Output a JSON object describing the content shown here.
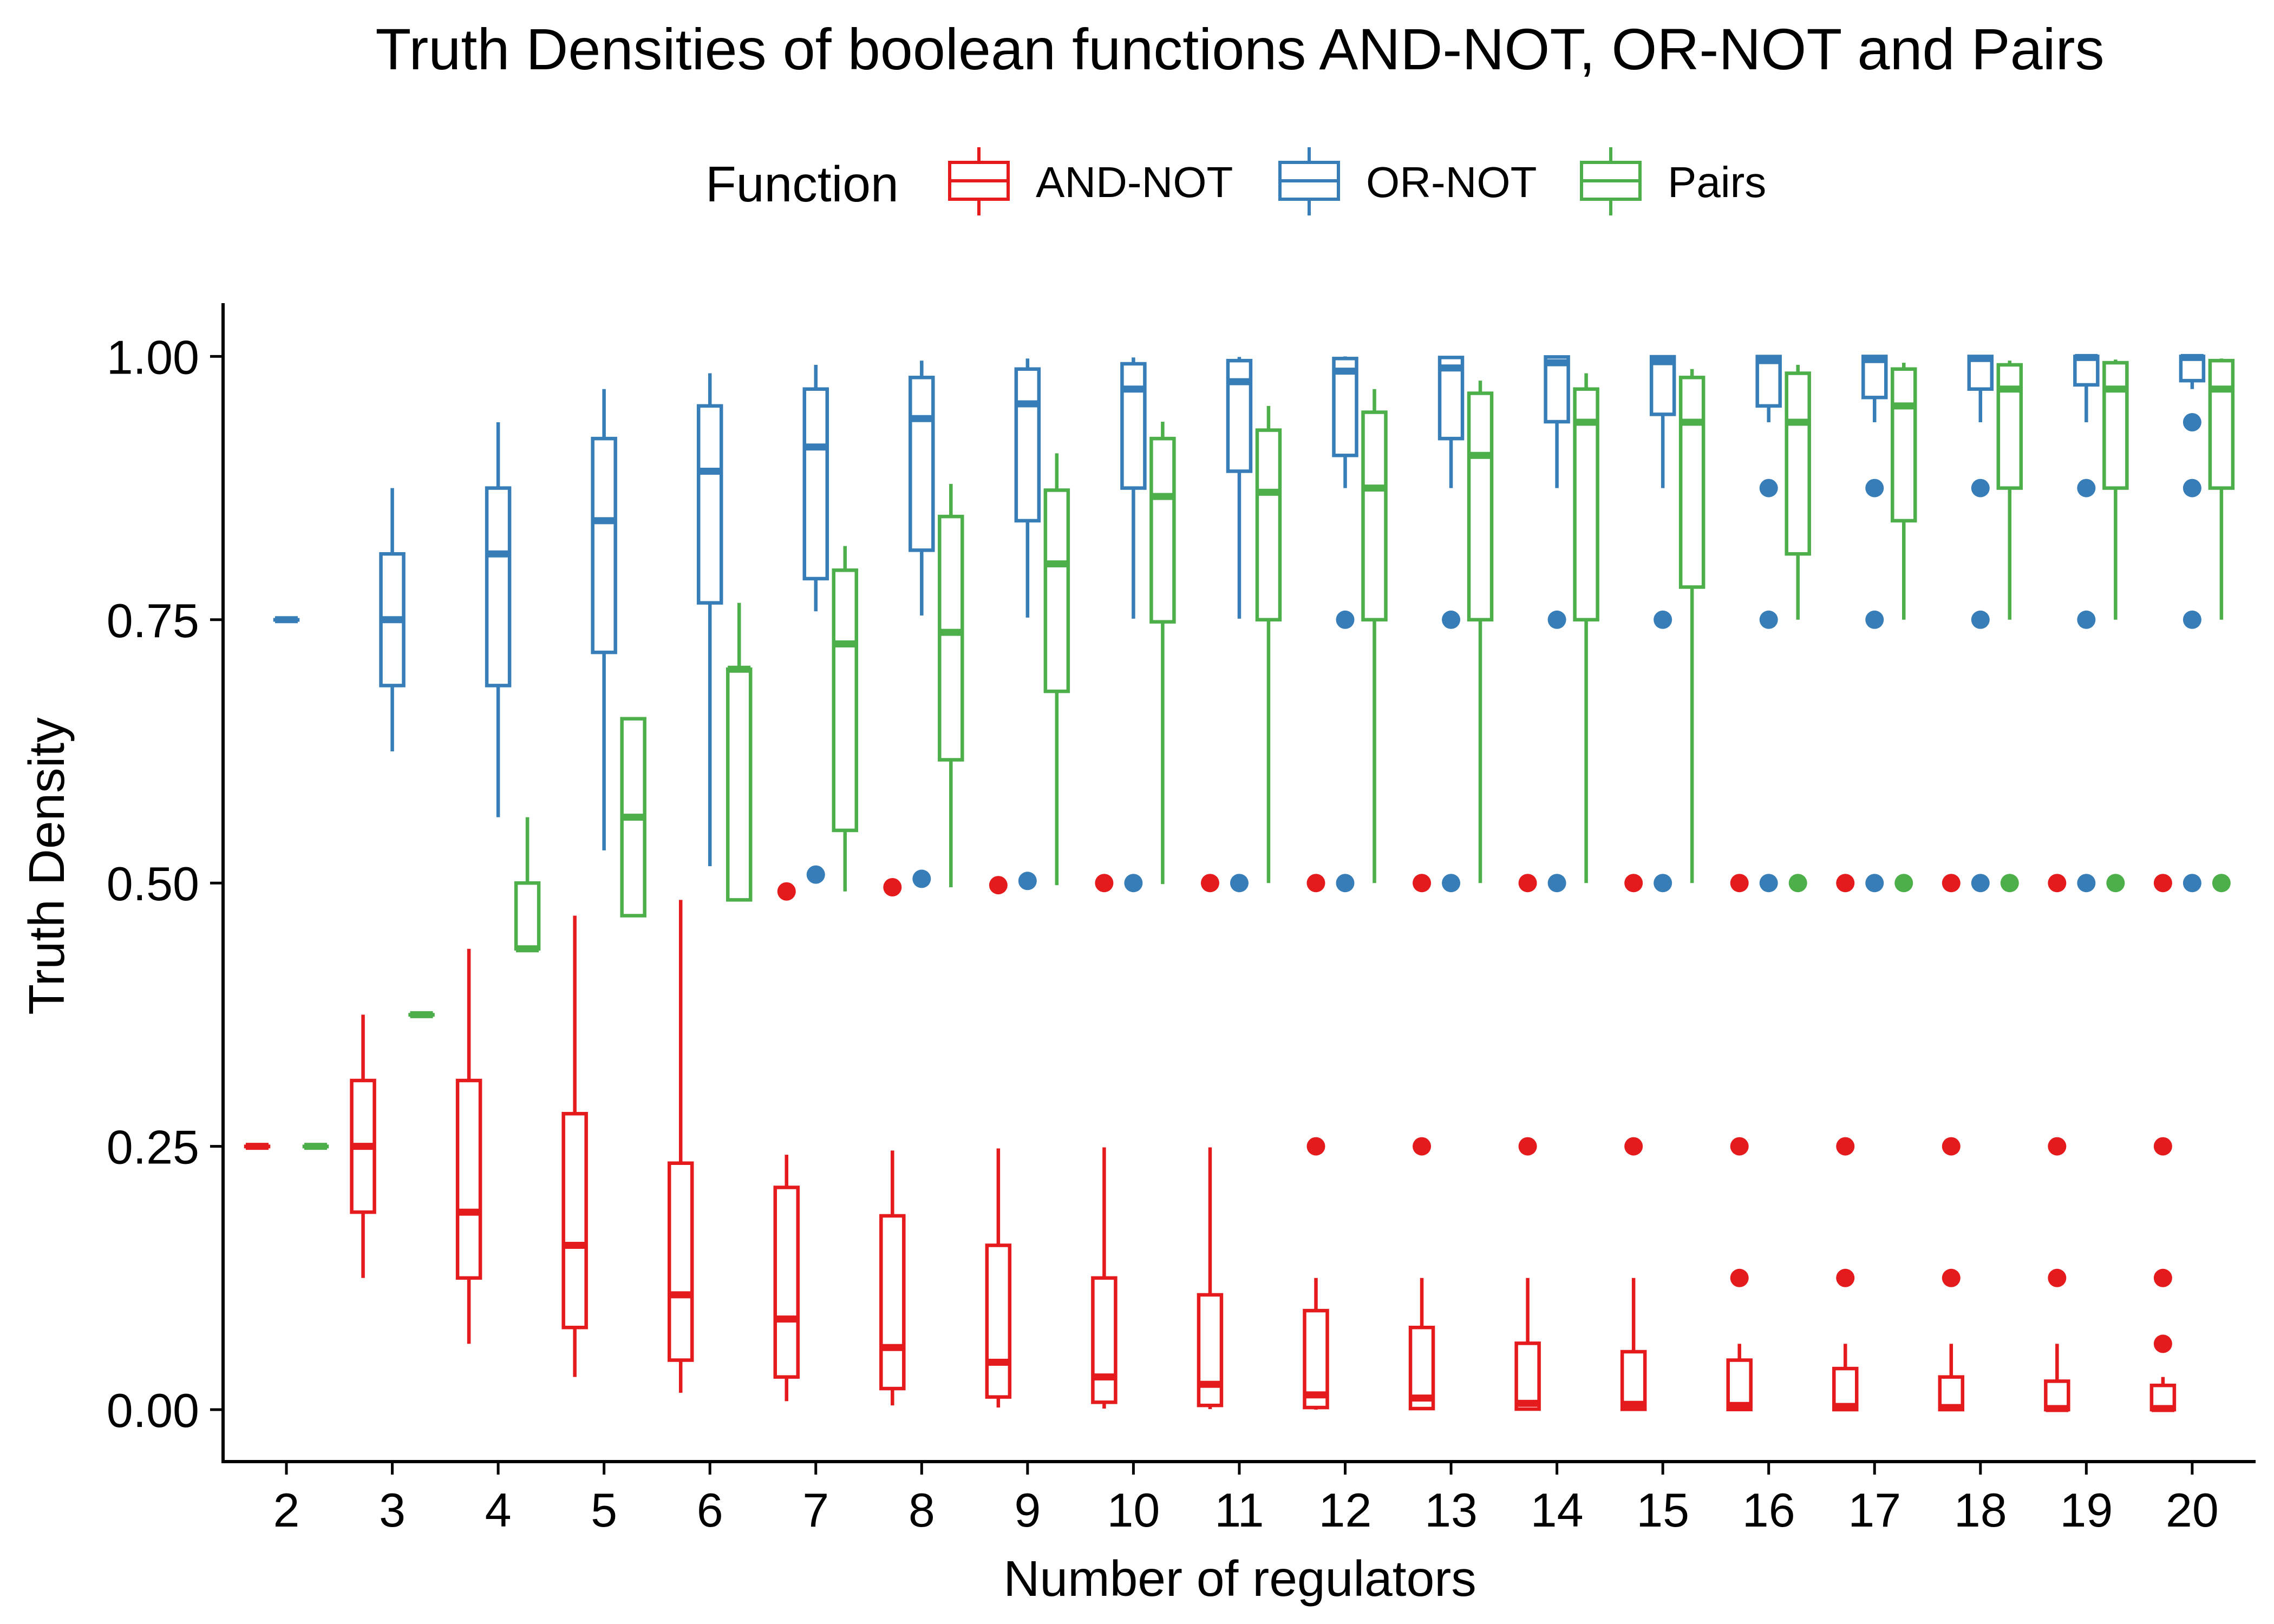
{
  "chart_data": {
    "type": "box",
    "title": "Truth Densities of boolean functions AND-NOT, OR-NOT and Pairs",
    "xlabel": "Number of regulators",
    "ylabel": "Truth Density",
    "legend": {
      "title": "Function",
      "placement": "top",
      "entries": [
        "AND-NOT",
        "OR-NOT",
        "Pairs"
      ]
    },
    "colors": {
      "AND-NOT": "#E41A1C",
      "OR-NOT": "#377EB8",
      "Pairs": "#4DAF4A"
    },
    "categories": [
      2,
      3,
      4,
      5,
      6,
      7,
      8,
      9,
      10,
      11,
      12,
      13,
      14,
      15,
      16,
      17,
      18,
      19,
      20
    ],
    "ylim": [
      -0.05,
      1.05
    ],
    "yticks": [
      0,
      0.25,
      0.5,
      0.75,
      1
    ],
    "ytick_labels": [
      "0.00",
      "0.25",
      "0.50",
      "0.75",
      "1.00"
    ],
    "series": [
      {
        "name": "AND-NOT",
        "boxes": [
          {
            "x": 2,
            "min": 0.25,
            "q1": 0.25,
            "median": 0.25,
            "q3": 0.25,
            "max": 0.25,
            "outliers": []
          },
          {
            "x": 3,
            "min": 0.125,
            "q1": 0.1875,
            "median": 0.25,
            "q3": 0.3125,
            "max": 0.375,
            "outliers": []
          },
          {
            "x": 4,
            "min": 0.0625,
            "q1": 0.125,
            "median": 0.1875,
            "q3": 0.3125,
            "max": 0.4375,
            "outliers": []
          },
          {
            "x": 5,
            "min": 0.031,
            "q1": 0.078,
            "median": 0.156,
            "q3": 0.281,
            "max": 0.469,
            "outliers": []
          },
          {
            "x": 6,
            "min": 0.016,
            "q1": 0.047,
            "median": 0.109,
            "q3": 0.234,
            "max": 0.484,
            "outliers": []
          },
          {
            "x": 7,
            "min": 0.008,
            "q1": 0.031,
            "median": 0.086,
            "q3": 0.211,
            "max": 0.242,
            "outliers": [
              0.492
            ]
          },
          {
            "x": 8,
            "min": 0.004,
            "q1": 0.02,
            "median": 0.059,
            "q3": 0.184,
            "max": 0.246,
            "outliers": [
              0.496
            ]
          },
          {
            "x": 9,
            "min": 0.002,
            "q1": 0.012,
            "median": 0.045,
            "q3": 0.156,
            "max": 0.248,
            "outliers": [
              0.498
            ]
          },
          {
            "x": 10,
            "min": 0.001,
            "q1": 0.007,
            "median": 0.031,
            "q3": 0.125,
            "max": 0.249,
            "outliers": [
              0.5
            ]
          },
          {
            "x": 11,
            "min": 0.0005,
            "q1": 0.004,
            "median": 0.024,
            "q3": 0.109,
            "max": 0.249,
            "outliers": [
              0.5
            ]
          },
          {
            "x": 12,
            "min": 0.0,
            "q1": 0.002,
            "median": 0.014,
            "q3": 0.094,
            "max": 0.125,
            "outliers": [
              0.25,
              0.5
            ]
          },
          {
            "x": 13,
            "min": 0.0,
            "q1": 0.001,
            "median": 0.011,
            "q3": 0.078,
            "max": 0.125,
            "outliers": [
              0.25,
              0.5
            ]
          },
          {
            "x": 14,
            "min": 0.0,
            "q1": 0.0005,
            "median": 0.006,
            "q3": 0.063,
            "max": 0.125,
            "outliers": [
              0.25,
              0.5
            ]
          },
          {
            "x": 15,
            "min": 0.0,
            "q1": 0.0003,
            "median": 0.005,
            "q3": 0.055,
            "max": 0.125,
            "outliers": [
              0.25,
              0.5
            ]
          },
          {
            "x": 16,
            "min": 0.0,
            "q1": 0.0001,
            "median": 0.004,
            "q3": 0.047,
            "max": 0.0625,
            "outliers": [
              0.125,
              0.25,
              0.5
            ]
          },
          {
            "x": 17,
            "min": 0.0,
            "q1": 0.0,
            "median": 0.003,
            "q3": 0.039,
            "max": 0.0625,
            "outliers": [
              0.125,
              0.25,
              0.5
            ]
          },
          {
            "x": 18,
            "min": 0.0,
            "q1": 0.0,
            "median": 0.002,
            "q3": 0.031,
            "max": 0.0625,
            "outliers": [
              0.125,
              0.25,
              0.5
            ]
          },
          {
            "x": 19,
            "min": 0.0,
            "q1": 0.0,
            "median": 0.001,
            "q3": 0.027,
            "max": 0.0625,
            "outliers": [
              0.125,
              0.25,
              0.5
            ]
          },
          {
            "x": 20,
            "min": 0.0,
            "q1": 0.0,
            "median": 0.001,
            "q3": 0.023,
            "max": 0.031,
            "outliers": [
              0.0625,
              0.125,
              0.25,
              0.5
            ]
          }
        ]
      },
      {
        "name": "OR-NOT",
        "boxes": [
          {
            "x": 2,
            "min": 0.75,
            "q1": 0.75,
            "median": 0.75,
            "q3": 0.75,
            "max": 0.75,
            "outliers": []
          },
          {
            "x": 3,
            "min": 0.625,
            "q1": 0.6875,
            "median": 0.75,
            "q3": 0.8125,
            "max": 0.875,
            "outliers": []
          },
          {
            "x": 4,
            "min": 0.5625,
            "q1": 0.6875,
            "median": 0.8125,
            "q3": 0.875,
            "max": 0.9375,
            "outliers": []
          },
          {
            "x": 5,
            "min": 0.531,
            "q1": 0.719,
            "median": 0.844,
            "q3": 0.922,
            "max": 0.969,
            "outliers": []
          },
          {
            "x": 6,
            "min": 0.516,
            "q1": 0.766,
            "median": 0.891,
            "q3": 0.953,
            "max": 0.984,
            "outliers": []
          },
          {
            "x": 7,
            "min": 0.758,
            "q1": 0.789,
            "median": 0.914,
            "q3": 0.969,
            "max": 0.992,
            "outliers": [
              0.508
            ]
          },
          {
            "x": 8,
            "min": 0.754,
            "q1": 0.816,
            "median": 0.941,
            "q3": 0.98,
            "max": 0.996,
            "outliers": [
              0.504
            ]
          },
          {
            "x": 9,
            "min": 0.752,
            "q1": 0.844,
            "median": 0.955,
            "q3": 0.988,
            "max": 0.998,
            "outliers": [
              0.502
            ]
          },
          {
            "x": 10,
            "min": 0.751,
            "q1": 0.875,
            "median": 0.969,
            "q3": 0.993,
            "max": 0.999,
            "outliers": [
              0.5
            ]
          },
          {
            "x": 11,
            "min": 0.751,
            "q1": 0.891,
            "median": 0.976,
            "q3": 0.996,
            "max": 0.9995,
            "outliers": [
              0.5
            ]
          },
          {
            "x": 12,
            "min": 0.875,
            "q1": 0.906,
            "median": 0.986,
            "q3": 0.998,
            "max": 1.0,
            "outliers": [
              0.75,
              0.5
            ]
          },
          {
            "x": 13,
            "min": 0.875,
            "q1": 0.922,
            "median": 0.989,
            "q3": 0.999,
            "max": 1.0,
            "outliers": [
              0.75,
              0.5
            ]
          },
          {
            "x": 14,
            "min": 0.875,
            "q1": 0.938,
            "median": 0.994,
            "q3": 0.9995,
            "max": 1.0,
            "outliers": [
              0.75,
              0.5
            ]
          },
          {
            "x": 15,
            "min": 0.875,
            "q1": 0.945,
            "median": 0.995,
            "q3": 0.9997,
            "max": 1.0,
            "outliers": [
              0.75,
              0.5
            ]
          },
          {
            "x": 16,
            "min": 0.9375,
            "q1": 0.953,
            "median": 0.996,
            "q3": 0.9999,
            "max": 1.0,
            "outliers": [
              0.875,
              0.75,
              0.5
            ]
          },
          {
            "x": 17,
            "min": 0.9375,
            "q1": 0.961,
            "median": 0.997,
            "q3": 1.0,
            "max": 1.0,
            "outliers": [
              0.875,
              0.75,
              0.5
            ]
          },
          {
            "x": 18,
            "min": 0.9375,
            "q1": 0.969,
            "median": 0.998,
            "q3": 1.0,
            "max": 1.0,
            "outliers": [
              0.875,
              0.75,
              0.5
            ]
          },
          {
            "x": 19,
            "min": 0.9375,
            "q1": 0.973,
            "median": 0.999,
            "q3": 1.0,
            "max": 1.0,
            "outliers": [
              0.875,
              0.75,
              0.5
            ]
          },
          {
            "x": 20,
            "min": 0.969,
            "q1": 0.977,
            "median": 0.999,
            "q3": 1.0,
            "max": 1.0,
            "outliers": [
              0.9375,
              0.875,
              0.75,
              0.5
            ]
          }
        ]
      },
      {
        "name": "Pairs",
        "boxes": [
          {
            "x": 2,
            "min": 0.25,
            "q1": 0.25,
            "median": 0.25,
            "q3": 0.25,
            "max": 0.25,
            "outliers": []
          },
          {
            "x": 3,
            "min": 0.375,
            "q1": 0.375,
            "median": 0.375,
            "q3": 0.375,
            "max": 0.375,
            "outliers": []
          },
          {
            "x": 4,
            "min": 0.4375,
            "q1": 0.4375,
            "median": 0.4375,
            "q3": 0.5,
            "max": 0.5625,
            "outliers": []
          },
          {
            "x": 5,
            "min": 0.469,
            "q1": 0.469,
            "median": 0.5625,
            "q3": 0.656,
            "max": 0.656,
            "outliers": []
          },
          {
            "x": 6,
            "min": 0.484,
            "q1": 0.484,
            "median": 0.703,
            "q3": 0.703,
            "max": 0.766,
            "outliers": []
          },
          {
            "x": 7,
            "min": 0.492,
            "q1": 0.55,
            "median": 0.727,
            "q3": 0.797,
            "max": 0.82,
            "outliers": []
          },
          {
            "x": 8,
            "min": 0.496,
            "q1": 0.617,
            "median": 0.738,
            "q3": 0.848,
            "max": 0.879,
            "outliers": []
          },
          {
            "x": 9,
            "min": 0.498,
            "q1": 0.682,
            "median": 0.803,
            "q3": 0.873,
            "max": 0.908,
            "outliers": []
          },
          {
            "x": 10,
            "min": 0.499,
            "q1": 0.748,
            "median": 0.867,
            "q3": 0.922,
            "max": 0.938,
            "outliers": []
          },
          {
            "x": 11,
            "min": 0.5,
            "q1": 0.75,
            "median": 0.871,
            "q3": 0.93,
            "max": 0.953,
            "outliers": []
          },
          {
            "x": 12,
            "min": 0.5,
            "q1": 0.75,
            "median": 0.875,
            "q3": 0.947,
            "max": 0.969,
            "outliers": []
          },
          {
            "x": 13,
            "min": 0.5,
            "q1": 0.75,
            "median": 0.906,
            "q3": 0.965,
            "max": 0.977,
            "outliers": []
          },
          {
            "x": 14,
            "min": 0.5,
            "q1": 0.75,
            "median": 0.9375,
            "q3": 0.969,
            "max": 0.984,
            "outliers": []
          },
          {
            "x": 15,
            "min": 0.5,
            "q1": 0.781,
            "median": 0.9375,
            "q3": 0.98,
            "max": 0.988,
            "outliers": []
          },
          {
            "x": 16,
            "min": 0.75,
            "q1": 0.8125,
            "median": 0.9375,
            "q3": 0.984,
            "max": 0.992,
            "outliers": [
              0.5
            ]
          },
          {
            "x": 17,
            "min": 0.75,
            "q1": 0.844,
            "median": 0.953,
            "q3": 0.988,
            "max": 0.994,
            "outliers": [
              0.5
            ]
          },
          {
            "x": 18,
            "min": 0.75,
            "q1": 0.875,
            "median": 0.969,
            "q3": 0.992,
            "max": 0.996,
            "outliers": [
              0.5
            ]
          },
          {
            "x": 19,
            "min": 0.75,
            "q1": 0.875,
            "median": 0.969,
            "q3": 0.994,
            "max": 0.997,
            "outliers": [
              0.5
            ]
          },
          {
            "x": 20,
            "min": 0.75,
            "q1": 0.875,
            "median": 0.969,
            "q3": 0.996,
            "max": 0.998,
            "outliers": [
              0.5
            ]
          }
        ]
      }
    ]
  }
}
